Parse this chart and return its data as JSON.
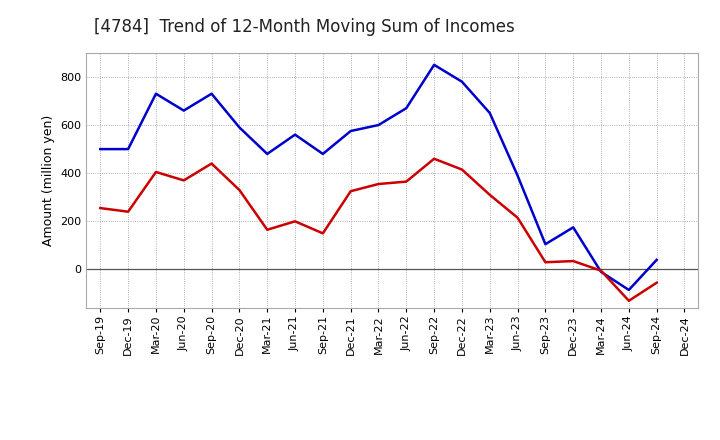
{
  "title": "[4784]  Trend of 12-Month Moving Sum of Incomes",
  "ylabel": "Amount (million yen)",
  "x_labels": [
    "Sep-19",
    "Dec-19",
    "Mar-20",
    "Jun-20",
    "Sep-20",
    "Dec-20",
    "Mar-21",
    "Jun-21",
    "Sep-21",
    "Dec-21",
    "Mar-22",
    "Jun-22",
    "Sep-22",
    "Dec-22",
    "Mar-23",
    "Jun-23",
    "Sep-23",
    "Dec-23",
    "Mar-24",
    "Jun-24",
    "Sep-24",
    "Dec-24"
  ],
  "ordinary_income": [
    500,
    500,
    730,
    660,
    730,
    590,
    480,
    560,
    480,
    575,
    600,
    670,
    850,
    780,
    650,
    390,
    105,
    175,
    -10,
    -85,
    40,
    null
  ],
  "net_income": [
    255,
    240,
    405,
    370,
    440,
    330,
    165,
    200,
    150,
    325,
    355,
    365,
    460,
    415,
    310,
    215,
    30,
    35,
    -5,
    -130,
    -55,
    null
  ],
  "ylim": [
    -160,
    900
  ],
  "yticks": [
    0,
    200,
    400,
    600,
    800
  ],
  "ordinary_color": "#0000cc",
  "net_color": "#cc0000",
  "background_color": "#ffffff",
  "grid_color": "#999999",
  "title_fontsize": 12,
  "axis_label_fontsize": 9,
  "tick_fontsize": 8,
  "legend_fontsize": 9,
  "linewidth": 1.8
}
